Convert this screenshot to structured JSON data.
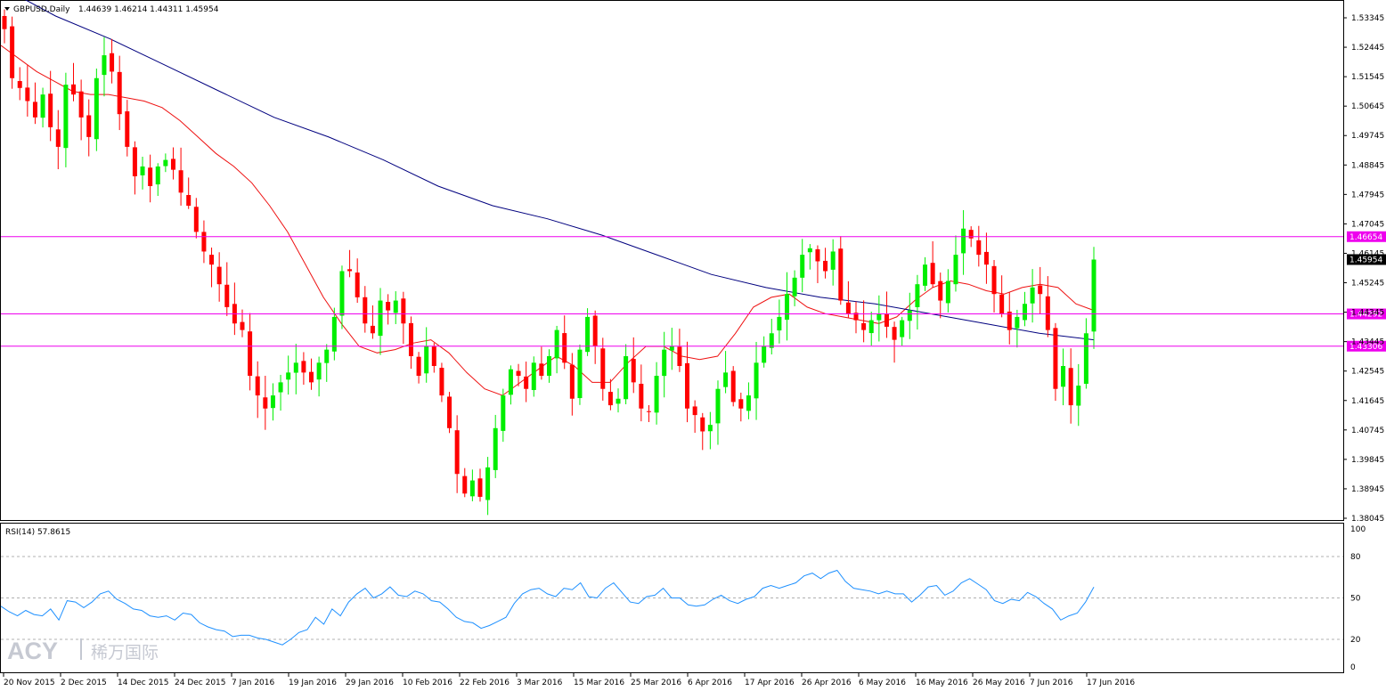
{
  "header": {
    "symbol": "GBPUSD,Daily",
    "ohlc": "1.44639 1.46214 1.44311 1.45954"
  },
  "indicator": {
    "label": "RSI(14) 57.8615"
  },
  "watermark": {
    "brand": "ACY",
    "sub": "稀万国际"
  },
  "colors": {
    "bull": "#00ee00",
    "bear": "#ff0000",
    "ma_fast": "#ee1111",
    "ma_slow": "#00007f",
    "level": "#ee00ee",
    "rsi": "#1e90ff"
  },
  "chart_data": [
    {
      "type": "candlestick",
      "title": "GBPUSD,Daily",
      "ylim": [
        1.38045,
        1.53345
      ],
      "y_ticks": [
        "1.53345",
        "1.52445",
        "1.51545",
        "1.50645",
        "1.49745",
        "1.48845",
        "1.47945",
        "1.47045",
        "1.46145",
        "1.45245",
        "1.44345",
        "1.43445",
        "1.42545",
        "1.41645",
        "1.40745",
        "1.39845",
        "1.38945",
        "1.38045"
      ],
      "x_ticks": [
        "20 Nov 2015",
        "2 Dec 2015",
        "14 Dec 2015",
        "24 Dec 2015",
        "7 Jan 2016",
        "19 Jan 2016",
        "29 Jan 2016",
        "10 Feb 2016",
        "22 Feb 2016",
        "3 Mar 2016",
        "15 Mar 2016",
        "25 Mar 2016",
        "6 Apr 2016",
        "17 Apr 2016",
        "26 Apr 2016",
        "6 May 2016",
        "16 May 2016",
        "26 May 2016",
        "7 Jun 2016",
        "17 Jun 2016"
      ],
      "horizontal_levels": [
        {
          "value": 1.46654,
          "label": "1.46654"
        },
        {
          "value": 1.44292,
          "label": "1.44292"
        },
        {
          "value": 1.43306,
          "label": "1.43306"
        }
      ],
      "current_price": {
        "value": 1.45954,
        "label": "1.45954"
      },
      "close_path": [
        1.53,
        1.515,
        1.512,
        1.508,
        1.503,
        1.51,
        1.5,
        1.494,
        1.513,
        1.51,
        1.503,
        1.497,
        1.515,
        1.522,
        1.517,
        1.504,
        1.494,
        1.485,
        1.488,
        1.482,
        1.488,
        1.49,
        1.487,
        1.48,
        1.476,
        1.468,
        1.462,
        1.458,
        1.452,
        1.445,
        1.44,
        1.438,
        1.424,
        1.418,
        1.414,
        1.418,
        1.422,
        1.425,
        1.428,
        1.425,
        1.422,
        1.428,
        1.432,
        1.442,
        1.456,
        1.456,
        1.448,
        1.44,
        1.437,
        1.447,
        1.444,
        1.447,
        1.44,
        1.43,
        1.424,
        1.433,
        1.427,
        1.418,
        1.408,
        1.394,
        1.388,
        1.392,
        1.387,
        1.396,
        1.408,
        1.418,
        1.426,
        1.424,
        1.42,
        1.428,
        1.424,
        1.43,
        1.438,
        1.428,
        1.417,
        1.432,
        1.442,
        1.433,
        1.42,
        1.415,
        1.417,
        1.43,
        1.422,
        1.414,
        1.413,
        1.424,
        1.432,
        1.433,
        1.427,
        1.414,
        1.412,
        1.407,
        1.409,
        1.42,
        1.425,
        1.416,
        1.414,
        1.418,
        1.428,
        1.433,
        1.437,
        1.442,
        1.449,
        1.454,
        1.461,
        1.463,
        1.459,
        1.456,
        1.462,
        1.447,
        1.443,
        1.441,
        1.438,
        1.441,
        1.443,
        1.439,
        1.435,
        1.441,
        1.444,
        1.452,
        1.458,
        1.452,
        1.447,
        1.453,
        1.461,
        1.469,
        1.466,
        1.461,
        1.458,
        1.449,
        1.443,
        1.438,
        1.442,
        1.446,
        1.451,
        1.449,
        1.438,
        1.42,
        1.427,
        1.415,
        1.421,
        1.437,
        1.45954
      ],
      "ma_fast_path": [
        1.525,
        1.521,
        1.517,
        1.514,
        1.511,
        1.51,
        1.51,
        1.509,
        1.508,
        1.506,
        1.502,
        1.497,
        1.492,
        1.488,
        1.483,
        1.476,
        1.468,
        1.458,
        1.448,
        1.44,
        1.433,
        1.431,
        1.432,
        1.434,
        1.435,
        1.431,
        1.425,
        1.42,
        1.418,
        1.422,
        1.426,
        1.43,
        1.427,
        1.422,
        1.422,
        1.428,
        1.433,
        1.433,
        1.43,
        1.429,
        1.43,
        1.437,
        1.445,
        1.448,
        1.449,
        1.445,
        1.443,
        1.442,
        1.441,
        1.44,
        1.442,
        1.447,
        1.451,
        1.453,
        1.452,
        1.45,
        1.449,
        1.451,
        1.452,
        1.451,
        1.446,
        1.444
      ],
      "ma_slow_path": [
        1.543,
        1.534,
        1.527,
        1.519,
        1.511,
        1.503,
        1.497,
        1.49,
        1.482,
        1.476,
        1.472,
        1.467,
        1.461,
        1.455,
        1.451,
        1.448,
        1.446,
        1.443,
        1.44,
        1.437,
        1.435
      ],
      "rsi": {
        "label": "RSI(14)",
        "value": 57.8615,
        "ylim": [
          0,
          100
        ],
        "y_ticks": [
          "100",
          "80",
          "50",
          "20",
          "0"
        ],
        "levels": [
          80,
          50,
          20
        ],
        "path": [
          44,
          40,
          37,
          41,
          38,
          37,
          42,
          34,
          48,
          47,
          43,
          47,
          53,
          55,
          49,
          46,
          42,
          41,
          37,
          36,
          37,
          34,
          39,
          38,
          32,
          29,
          27,
          26,
          22,
          23,
          23,
          21,
          20,
          18,
          16,
          20,
          25,
          27,
          36,
          31,
          42,
          37,
          47,
          53,
          57,
          50,
          53,
          58,
          52,
          51,
          55,
          53,
          48,
          47,
          42,
          36,
          33,
          32,
          28,
          30,
          33,
          36,
          46,
          53,
          56,
          57,
          53,
          51,
          57,
          56,
          61,
          51,
          50,
          57,
          61,
          54,
          47,
          46,
          51,
          52,
          57,
          50,
          50,
          45,
          44,
          45,
          49,
          52,
          48,
          46,
          49,
          51,
          57,
          59,
          57,
          59,
          61,
          66,
          68,
          64,
          68,
          70,
          62,
          57,
          56,
          55,
          53,
          55,
          53,
          53,
          47,
          52,
          58,
          59,
          52,
          55,
          61,
          64,
          60,
          56,
          48,
          46,
          49,
          48,
          54,
          51,
          46,
          42,
          34,
          37,
          39,
          47,
          57.86
        ]
      }
    }
  ]
}
